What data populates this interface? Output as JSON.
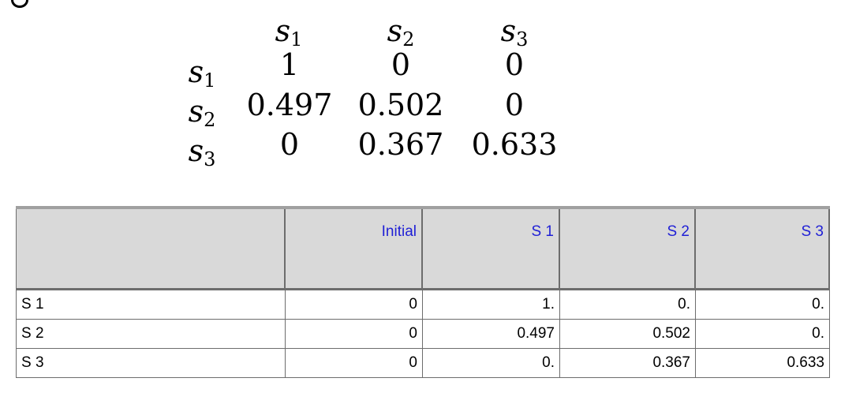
{
  "matrix": {
    "col_labels": [
      {
        "base": "s",
        "sub": "1"
      },
      {
        "base": "s",
        "sub": "2"
      },
      {
        "base": "s",
        "sub": "3"
      }
    ],
    "row_labels": [
      {
        "base": "s",
        "sub": "1"
      },
      {
        "base": "s",
        "sub": "2"
      },
      {
        "base": "s",
        "sub": "3"
      }
    ],
    "values": [
      [
        "1",
        "0",
        "0"
      ],
      [
        "0.497",
        "0.502",
        "0"
      ],
      [
        "0",
        "0.367",
        "0.633"
      ]
    ]
  },
  "table": {
    "headers": [
      "",
      "Initial",
      "S 1",
      "S 2",
      "S 3"
    ],
    "rows": [
      {
        "label": "S 1",
        "cells": [
          "0",
          "1.",
          "0.",
          "0."
        ]
      },
      {
        "label": "S 2",
        "cells": [
          "0",
          "0.497",
          "0.502",
          "0."
        ]
      },
      {
        "label": "S 3",
        "cells": [
          "0",
          "0.",
          "0.367",
          "0.633"
        ]
      }
    ],
    "colors": {
      "header_bg": "#d9d9d9",
      "header_text": "#1f1fd6",
      "cell_bg": "#ffffff",
      "grid_line": "#6d6d6d"
    }
  }
}
